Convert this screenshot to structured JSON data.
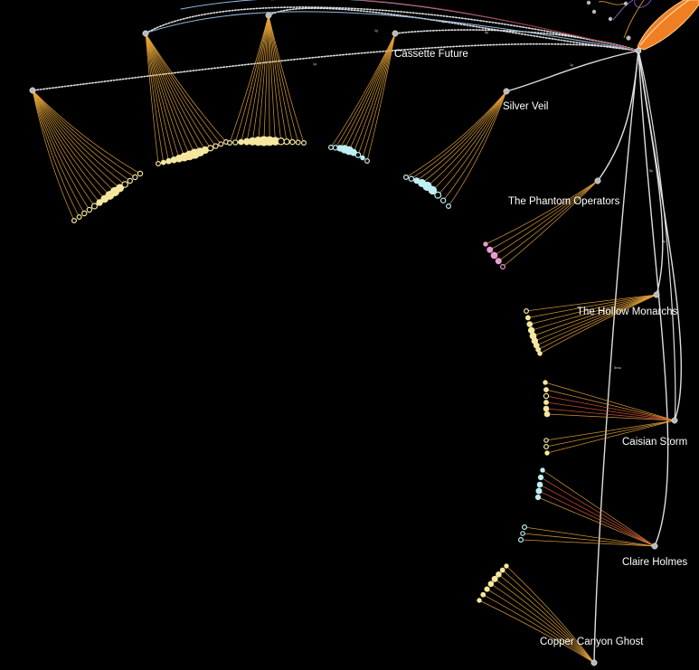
{
  "artists": [
    {
      "label": ""
    },
    {
      "label": ""
    },
    {
      "label": ""
    },
    {
      "label": "Cassette Future"
    },
    {
      "label": "Silver Veil"
    },
    {
      "label": "The Phantom Operators"
    },
    {
      "label": "The Hollow Monarchs"
    },
    {
      "label": "Caisian Storm"
    },
    {
      "label": "Claire Holmes"
    },
    {
      "label": "Copper Canyon Ghost"
    }
  ],
  "edge_labels": [
    "5y",
    "1y",
    "1y",
    "1y",
    "1y",
    "5y",
    "3y",
    "5mo"
  ],
  "colors": {
    "background": "#000000",
    "track_edge": "#e3a33a",
    "track_edge_alt": "#d9583a",
    "artist_link": "#dedede",
    "link_blue": "#8fb8e0",
    "link_red": "#b02a2a",
    "node_yellow": "#f6e7a0",
    "node_cyan": "#bfeff5",
    "node_pink": "#e99ccf",
    "hub": "#f07f24",
    "artist_node": "#b9b9b9"
  }
}
